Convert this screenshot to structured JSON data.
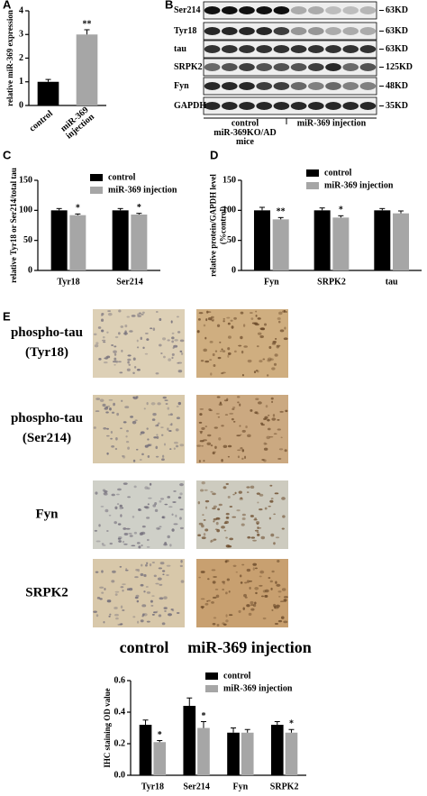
{
  "chart_data": [
    {
      "type": "bar",
      "panel": "A",
      "ylabel": "relative miR-369 expression",
      "categories": [
        "control",
        "miR-369\ninjection"
      ],
      "values": [
        1.0,
        3.0
      ],
      "errors": [
        0.1,
        0.2
      ],
      "colors": [
        "#000000",
        "#a6a6a6"
      ],
      "significance": [
        null,
        "**"
      ],
      "ylim": [
        0,
        4
      ],
      "yticks": [
        0,
        1,
        2,
        3,
        4
      ]
    },
    {
      "type": "grouped-bar",
      "panel": "C",
      "ylabel": "relative Tyr18 or Ser214/total tau",
      "categories": [
        "Tyr18",
        "Ser214"
      ],
      "series": [
        {
          "name": "control",
          "color": "#000000",
          "values": [
            100,
            100
          ],
          "errors": [
            3,
            3
          ],
          "significance": [
            null,
            null
          ]
        },
        {
          "name": "miR-369 injection",
          "color": "#a6a6a6",
          "values": [
            92,
            93
          ],
          "errors": [
            2,
            2
          ],
          "significance": [
            "*",
            "*"
          ]
        }
      ],
      "ylim": [
        0,
        150
      ],
      "yticks": [
        0,
        50,
        100,
        150
      ]
    },
    {
      "type": "grouped-bar",
      "panel": "D",
      "ylabel": "relative protein/GAPDH level\n(%control)",
      "categories": [
        "Fyn",
        "SRPK2",
        "tau"
      ],
      "series": [
        {
          "name": "control",
          "color": "#000000",
          "values": [
            100,
            100,
            100
          ],
          "errors": [
            5,
            4,
            3
          ],
          "significance": [
            null,
            null,
            null
          ]
        },
        {
          "name": "miR-369 injection",
          "color": "#a6a6a6",
          "values": [
            85,
            88,
            95
          ],
          "errors": [
            3,
            3,
            4
          ],
          "significance": [
            "**",
            "*",
            null
          ]
        }
      ],
      "ylim": [
        0,
        150
      ],
      "yticks": [
        0,
        50,
        100,
        150
      ]
    },
    {
      "type": "grouped-bar",
      "ylabel": "IHC staining OD value",
      "categories": [
        "Tyr18",
        "Ser214",
        "Fyn",
        "SRPK2"
      ],
      "series": [
        {
          "name": "control",
          "color": "#000000",
          "values": [
            0.32,
            0.44,
            0.27,
            0.32
          ],
          "errors": [
            0.03,
            0.05,
            0.03,
            0.02
          ],
          "significance": [
            null,
            null,
            null,
            null
          ]
        },
        {
          "name": "miR-369 injection",
          "color": "#a6a6a6",
          "values": [
            0.21,
            0.3,
            0.27,
            0.27
          ],
          "errors": [
            0.01,
            0.04,
            0.02,
            0.02
          ],
          "significance": [
            "*",
            "*",
            null,
            "*"
          ]
        }
      ],
      "ylim": [
        0,
        0.6
      ],
      "yticks": [
        {
          "value": 0,
          "label": "0.0"
        },
        0.2,
        0.4,
        0.6
      ]
    }
  ],
  "blot": {
    "panel": "B",
    "rows": [
      {
        "label": "Ser214",
        "marker": "63KD"
      },
      {
        "label": "Tyr18",
        "marker": "63KD"
      },
      {
        "label": "tau",
        "marker": "63KD"
      },
      {
        "label": "SRPK2",
        "marker": "125KD"
      },
      {
        "label": "Fyn",
        "marker": "48KD"
      },
      {
        "label": "GAPDH",
        "marker": "35KD"
      }
    ],
    "group_labels": [
      "control",
      "miR-369 injection"
    ],
    "caption": "miR-369KO/AD\nmice"
  },
  "ihc": {
    "panel": "E",
    "rows": [
      "phospho-tau\n(Tyr18)",
      "phospho-tau\n(Ser214)",
      "Fyn",
      "SRPK2"
    ],
    "columns": [
      "control",
      "miR-369 injection"
    ]
  }
}
